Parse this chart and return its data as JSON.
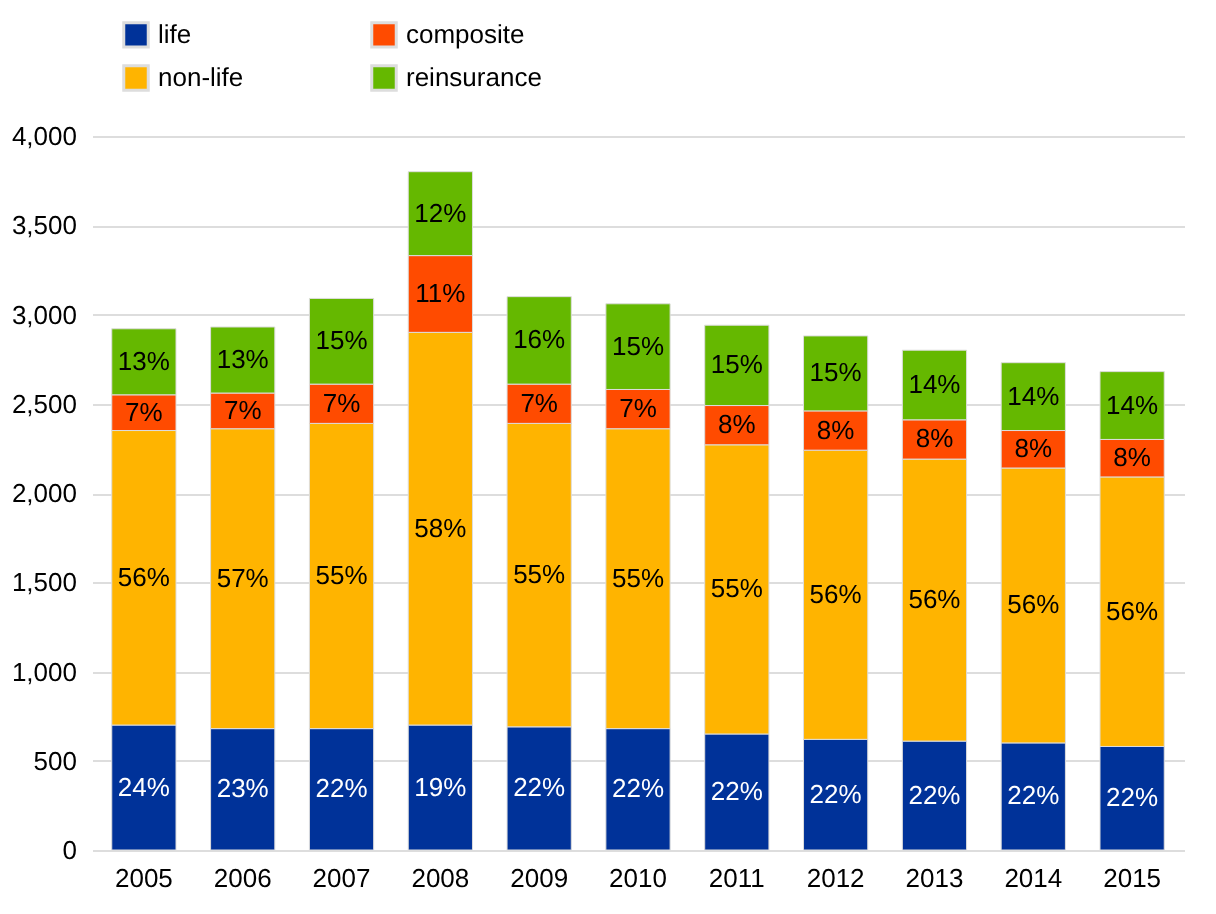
{
  "chart_data": {
    "type": "bar",
    "stacked": true,
    "legend": "top left",
    "grid": "y",
    "categories": [
      "2005",
      "2006",
      "2007",
      "2008",
      "2009",
      "2010",
      "2011",
      "2012",
      "2013",
      "2014",
      "2015"
    ],
    "ylim": [
      0,
      4000
    ],
    "yticks": [
      {
        "value": 0,
        "label": "0"
      },
      {
        "value": 500,
        "label": "500"
      },
      {
        "value": 1000,
        "label": "1,000"
      },
      {
        "value": 1500,
        "label": "1,500"
      },
      {
        "value": 2000,
        "label": "2,000"
      },
      {
        "value": 2500,
        "label": "2,500"
      },
      {
        "value": 3000,
        "label": "3,000"
      },
      {
        "value": 3500,
        "label": "3,500"
      },
      {
        "value": 4000,
        "label": "4,000"
      }
    ],
    "series": [
      {
        "name": "life",
        "color": "#003299",
        "values": [
          700,
          680,
          680,
          700,
          690,
          680,
          650,
          620,
          610,
          600,
          580
        ]
      },
      {
        "name": "non-life",
        "color": "#ffb400",
        "values": [
          1650,
          1680,
          1710,
          2200,
          1700,
          1680,
          1620,
          1620,
          1580,
          1540,
          1510
        ]
      },
      {
        "name": "composite",
        "color": "#ff4b00",
        "values": [
          200,
          200,
          220,
          430,
          220,
          220,
          220,
          220,
          220,
          210,
          210
        ]
      },
      {
        "name": "reinsurance",
        "color": "#65b800",
        "values": [
          370,
          370,
          480,
          470,
          490,
          480,
          450,
          420,
          390,
          380,
          380
        ]
      }
    ],
    "annotations": [
      "24%",
      "23%",
      "22%",
      "19%",
      "22%",
      "22%",
      "22%",
      "22%",
      "22%",
      "22%",
      "22%",
      "56%",
      "57%",
      "55%",
      "58%",
      "55%",
      "55%",
      "55%",
      "56%",
      "56%",
      "56%",
      "56%",
      "7%",
      "7%",
      "7%",
      "11%",
      "7%",
      "7%",
      "8%",
      "8%",
      "8%",
      "8%",
      "8%",
      "13%",
      "13%",
      "15%",
      "12%",
      "16%",
      "15%",
      "15%",
      "15%",
      "14%",
      "14%",
      "14%"
    ]
  }
}
